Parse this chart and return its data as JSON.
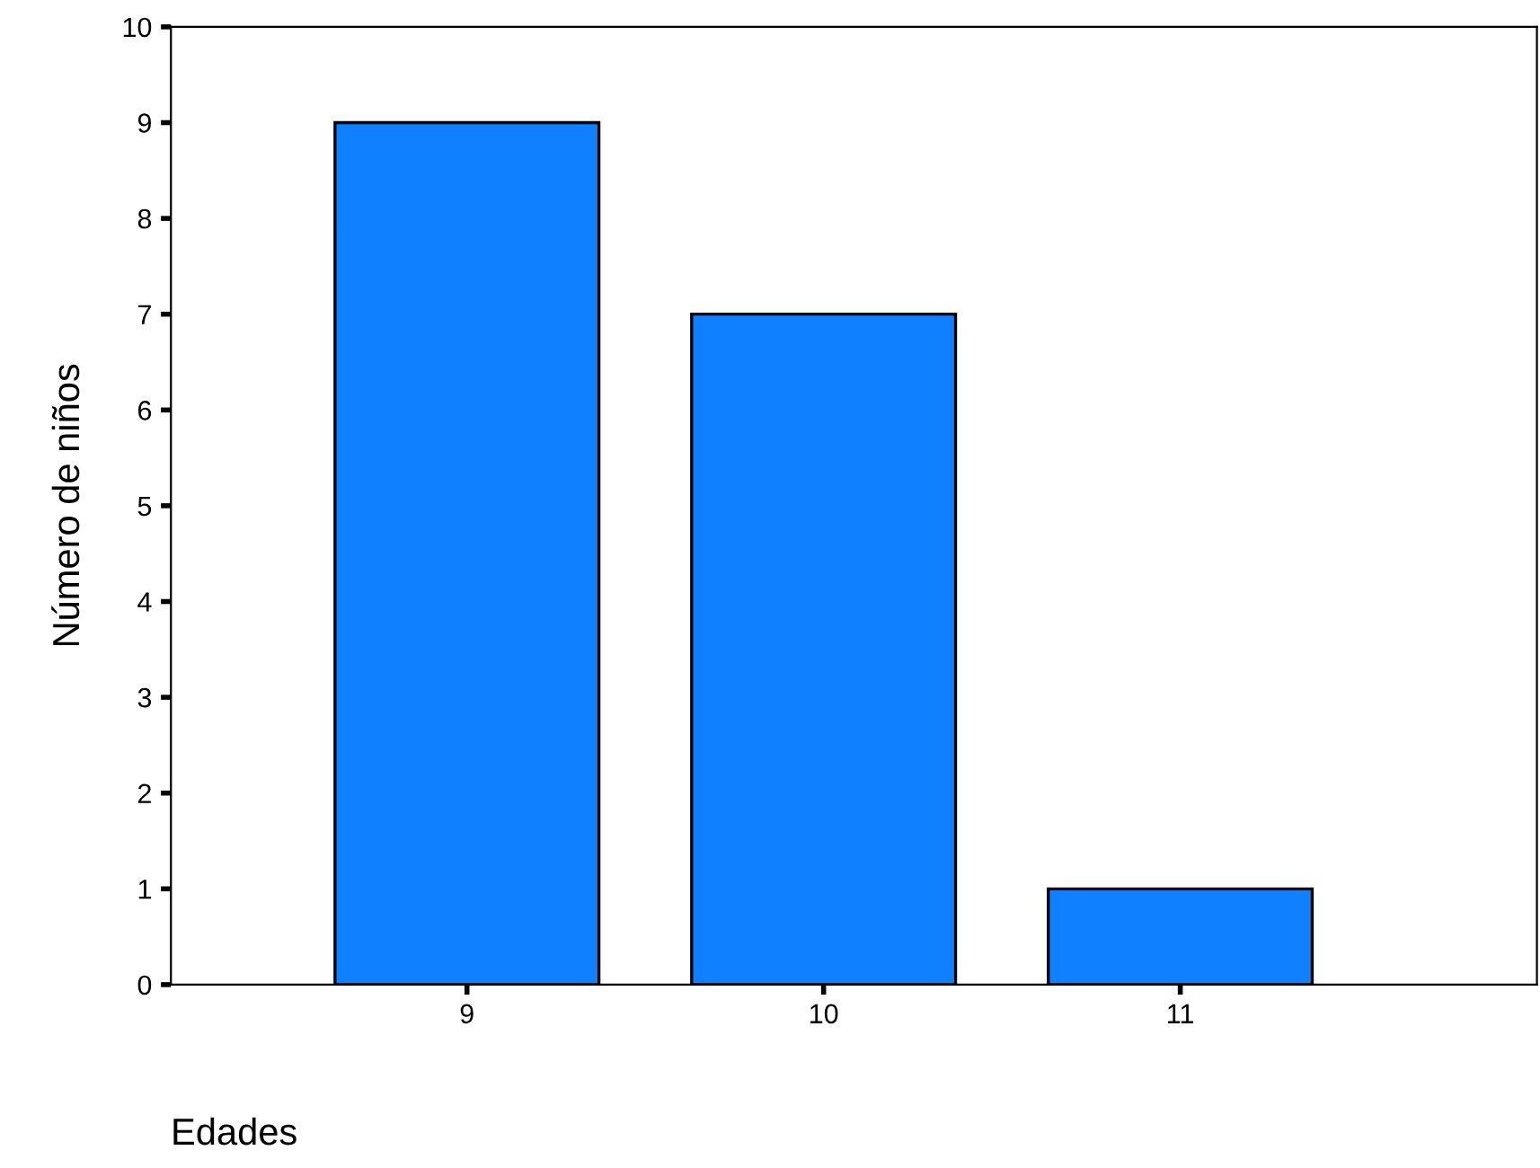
{
  "chart_data": {
    "type": "bar",
    "xlabel": "Edades",
    "ylabel": "Número de niños",
    "categories": [
      "9",
      "10",
      "11"
    ],
    "values": [
      9,
      7,
      1
    ],
    "color": "#0f80ff",
    "ylim": [
      0,
      10
    ],
    "yticks": [
      0,
      1,
      2,
      3,
      4,
      5,
      6,
      7,
      8,
      9,
      10
    ],
    "grid": false
  }
}
